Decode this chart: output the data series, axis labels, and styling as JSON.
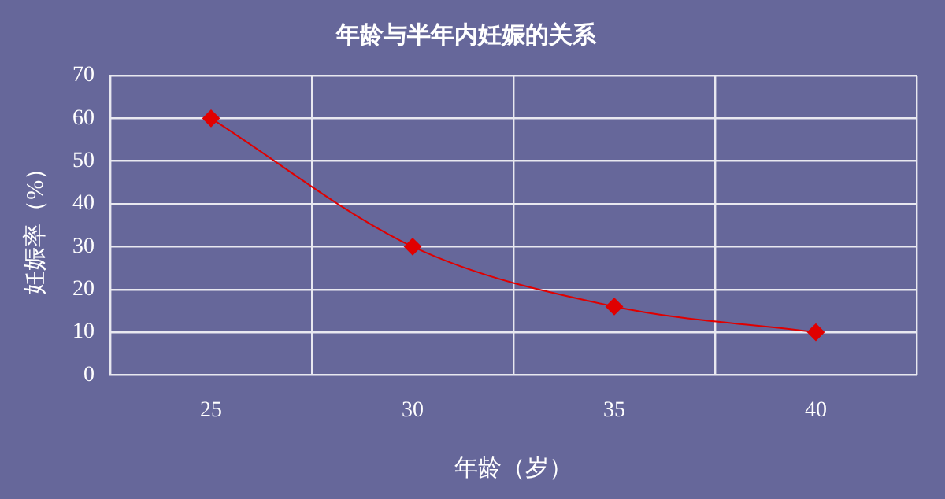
{
  "chart_data": {
    "type": "line",
    "title": "年龄与半年内妊娠的关系",
    "xlabel": "年龄（岁）",
    "ylabel": "妊娠率（%）",
    "categories": [
      "25",
      "30",
      "35",
      "40"
    ],
    "series": [
      {
        "color": "#e00000",
        "values": [
          60,
          30,
          16,
          10
        ]
      }
    ],
    "ylim": [
      0,
      70
    ],
    "yticks": [
      0,
      10,
      20,
      30,
      40,
      50,
      60,
      70
    ],
    "grid": true,
    "marker": "diamond",
    "legend": false
  }
}
